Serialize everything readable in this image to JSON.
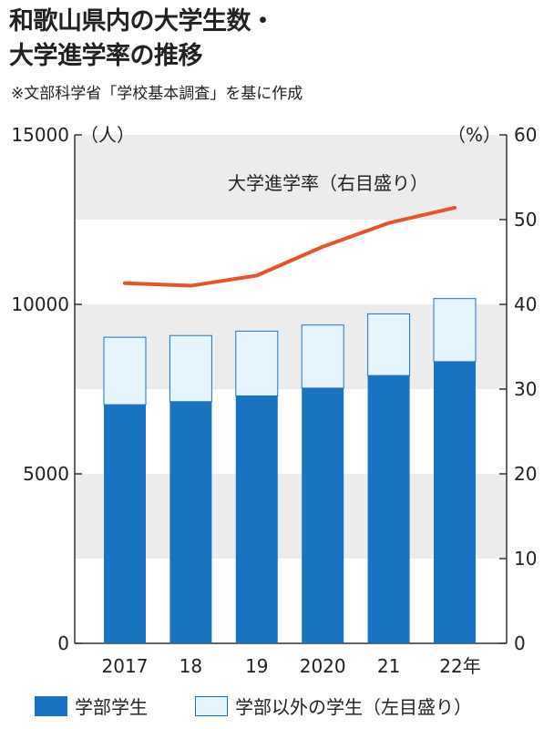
{
  "chart_data": {
    "type": "bar+line",
    "title_line1": "和歌山県内の大学生数・",
    "title_line2": "大学進学率の推移",
    "source": "※文部科学省「学校基本調査」を基に作成",
    "categories": [
      "2017",
      "18",
      "19",
      "2020",
      "21",
      "22年"
    ],
    "left_axis": {
      "unit": "（人）",
      "ylim": [
        0,
        15000
      ],
      "ticks": [
        "0",
        "5000",
        "10000",
        "15000"
      ]
    },
    "right_axis": {
      "unit": "（%）",
      "ylim": [
        0,
        60
      ],
      "ticks": [
        "0",
        "10",
        "20",
        "30",
        "40",
        "50",
        "60"
      ]
    },
    "stacked": true,
    "series": [
      {
        "name": "学部学生",
        "type": "bar",
        "axis": "left",
        "color": "#1a73c0",
        "values": [
          7040,
          7130,
          7300,
          7530,
          7900,
          8310
        ]
      },
      {
        "name": "学部以外の学生（左目盛り）",
        "type": "bar",
        "axis": "left",
        "color": "#e6f4fc",
        "values": [
          1990,
          1950,
          1910,
          1860,
          1820,
          1860
        ]
      },
      {
        "name": "大学進学率（右目盛り）",
        "type": "line",
        "axis": "right",
        "color": "#e8532a",
        "values": [
          42.5,
          42.2,
          43.4,
          46.8,
          49.6,
          51.4
        ]
      }
    ],
    "grid": "alternating horizontal bands",
    "band_color": "#ececec"
  }
}
